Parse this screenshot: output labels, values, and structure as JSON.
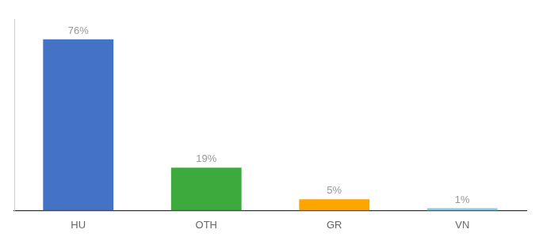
{
  "chart_data": {
    "type": "bar",
    "categories": [
      "HU",
      "OTH",
      "GR",
      "VN"
    ],
    "values": [
      76,
      19,
      5,
      1
    ],
    "value_labels": [
      "76%",
      "19%",
      "5%",
      "1%"
    ],
    "colors": [
      "#4472C4",
      "#3DAA3D",
      "#FFA500",
      "#87CEEB"
    ],
    "ylim": [
      0,
      85
    ],
    "grid": false,
    "data_labels": true,
    "tick_labels": "x"
  }
}
